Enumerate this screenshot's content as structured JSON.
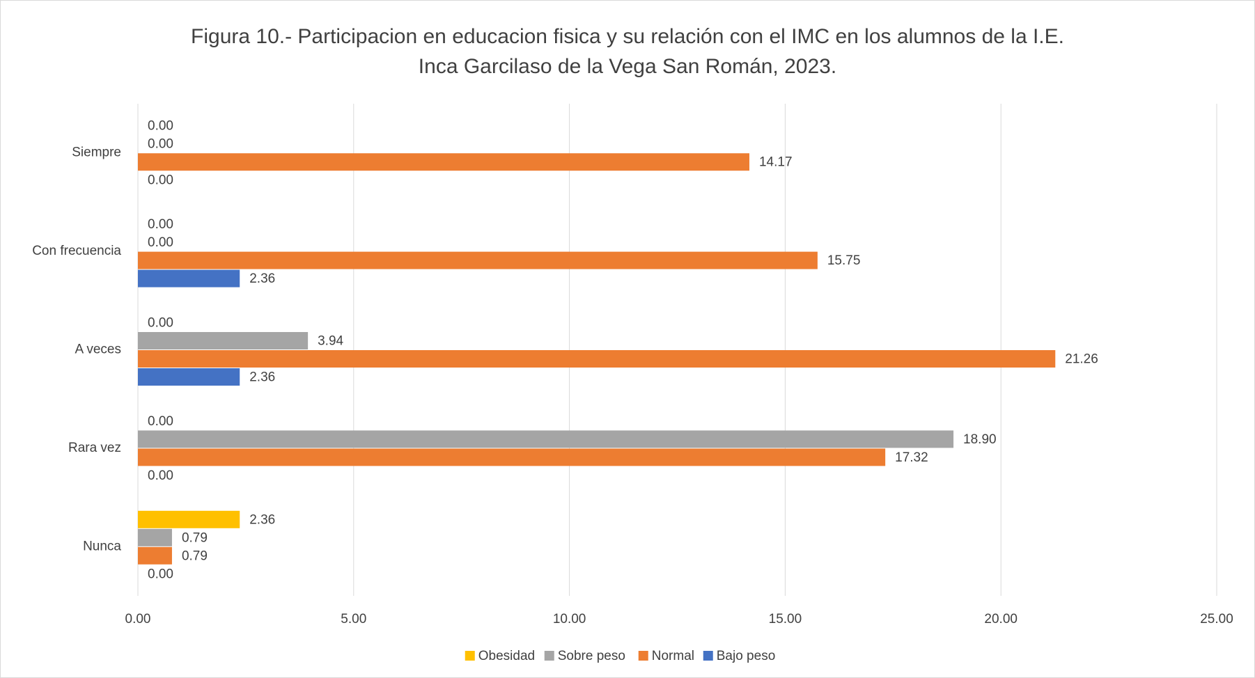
{
  "chart_data": {
    "type": "bar",
    "orientation": "horizontal",
    "title": [
      "Figura 10.- Participacion en educacion fisica y su relación con el IMC en los alumnos de la I.E.",
      "Inca Garcilaso de la Vega San Román, 2023."
    ],
    "categories": [
      "Siempre",
      "Con frecuencia",
      "A veces",
      "Rara vez",
      "Nunca"
    ],
    "series": [
      {
        "name": "Obesidad",
        "color": "#FFC000",
        "values": [
          0,
          0,
          0,
          0,
          2.36
        ],
        "value_labels": [
          "0.00",
          "0.00",
          "0.00",
          "0.00",
          "2.36"
        ]
      },
      {
        "name": "Sobre peso",
        "color": "#A5A5A5",
        "values": [
          0,
          0,
          3.94,
          18.9,
          0.79
        ],
        "value_labels": [
          "0.00",
          "0.00",
          "3.94",
          "18.90",
          "0.79"
        ]
      },
      {
        "name": "Normal",
        "color": "#ED7D31",
        "values": [
          14.17,
          15.75,
          21.26,
          17.32,
          0.79
        ],
        "value_labels": [
          "14.17",
          "15.75",
          "21.26",
          "17.32",
          "0.79"
        ]
      },
      {
        "name": "Bajo peso",
        "color": "#4472C4",
        "values": [
          0,
          2.36,
          2.36,
          0,
          0
        ],
        "value_labels": [
          "0.00",
          "2.36",
          "2.36",
          "0.00",
          "0.00"
        ]
      }
    ],
    "xlim": [
      0,
      25
    ],
    "xticks": [
      {
        "value": 0,
        "label": "0.00"
      },
      {
        "value": 5,
        "label": "5.00"
      },
      {
        "value": 10,
        "label": "10.00"
      },
      {
        "value": 15,
        "label": "15.00"
      },
      {
        "value": 20,
        "label": "20.00"
      },
      {
        "value": 25,
        "label": "25.00"
      }
    ],
    "grid": true,
    "legend": "bottom"
  }
}
